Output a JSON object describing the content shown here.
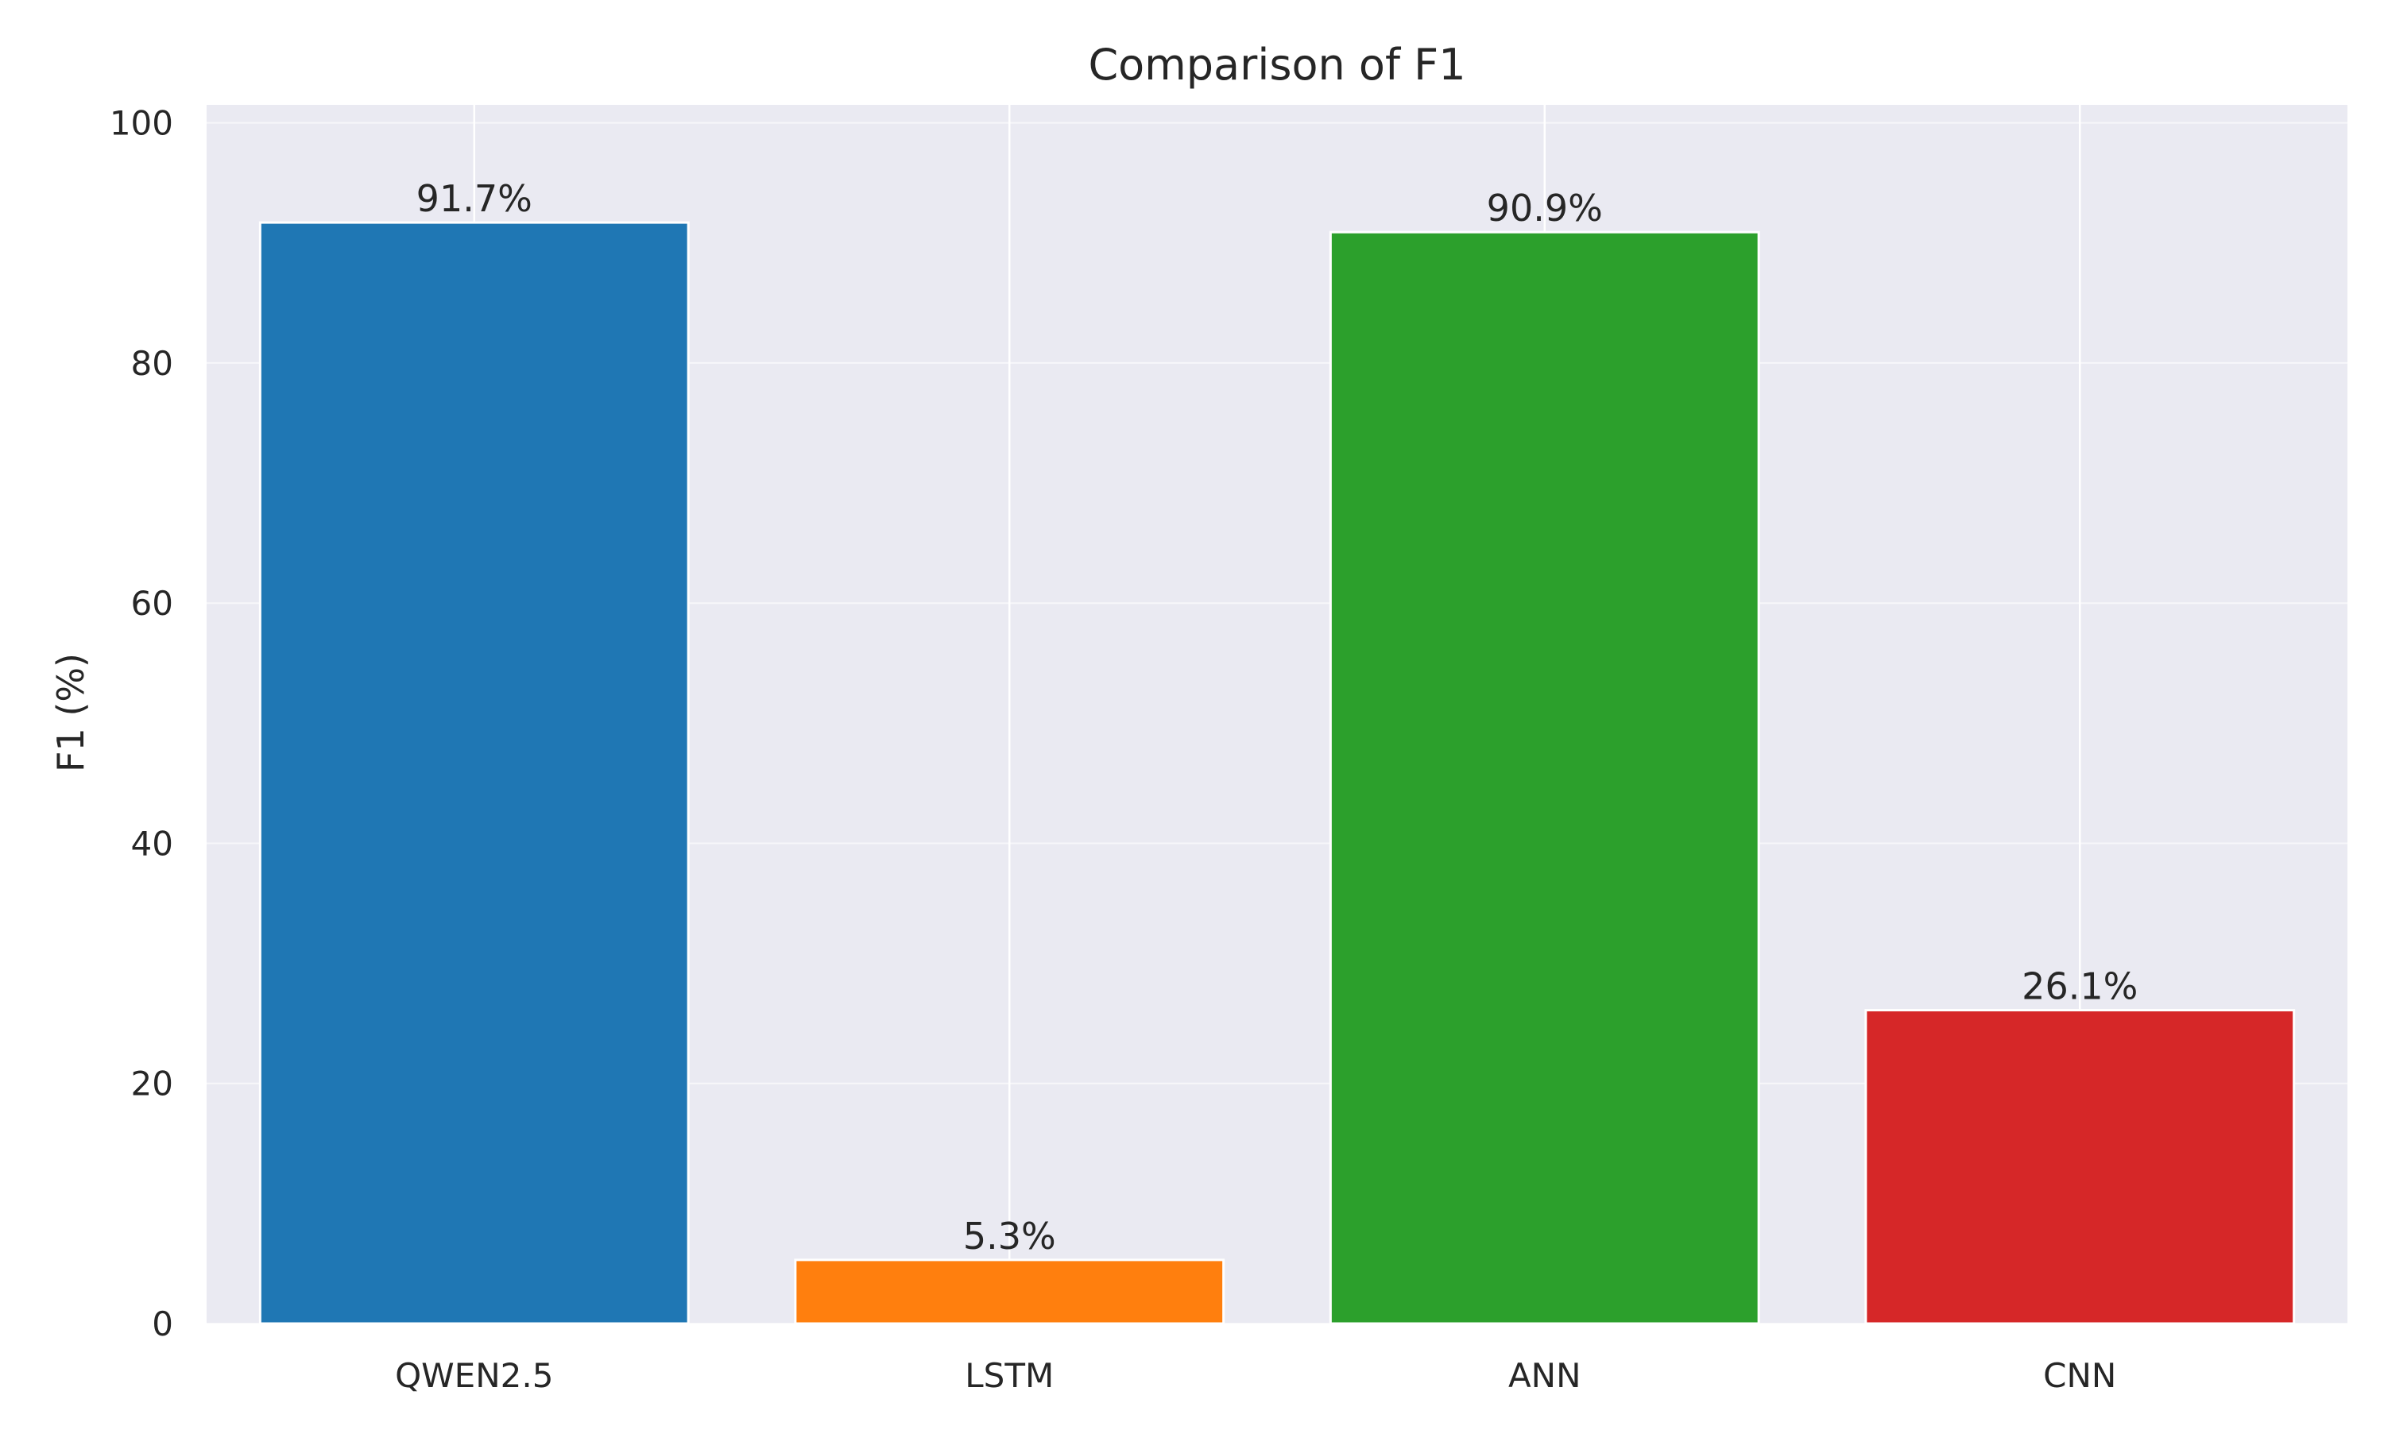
{
  "chart_data": {
    "type": "bar",
    "title": "Comparison of F1",
    "xlabel": "",
    "ylabel": "F1 (%)",
    "categories": [
      "QWEN2.5",
      "LSTM",
      "ANN",
      "CNN"
    ],
    "values": [
      91.7,
      5.3,
      90.9,
      26.1
    ],
    "value_labels": [
      "91.7%",
      "5.3%",
      "90.9%",
      "26.1%"
    ],
    "colors": [
      "#1f77b4",
      "#ff7f0e",
      "#2ca02c",
      "#d62728"
    ],
    "ylim": [
      0,
      100
    ],
    "yticks": [
      0,
      20,
      40,
      60,
      80,
      100
    ],
    "ytick_labels": [
      "0",
      "20",
      "40",
      "60",
      "80",
      "100"
    ],
    "grid": true,
    "background_color": "#eaeaf2",
    "grid_color": "#ffffff"
  }
}
